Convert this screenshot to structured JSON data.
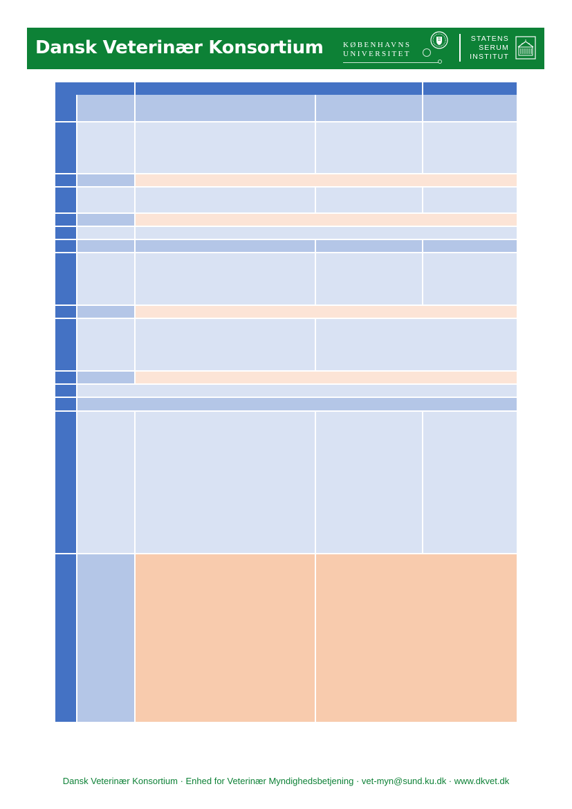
{
  "header": {
    "title": "Dansk Veterinær Konsortium",
    "university_line1": "KØBENHAVNS",
    "university_line2": "UNIVERSITET",
    "institute_line1": "STATENS",
    "institute_line2": "SERUM",
    "institute_line3": "INSTITUT",
    "brand_color": "#0d8136",
    "university_seal_icon": "ku-seal-icon",
    "institute_logo_icon": "ssi-building-icon"
  },
  "table": {
    "header_color": "#4472c4",
    "mid_color": "#b4c6e7",
    "light_color": "#d9e2f3",
    "peach_color": "#fce4d6",
    "orange_color": "#f8cbad"
  },
  "footer": {
    "text": "Dansk Veterinær Konsortium · Enhed for Veterinær Myndighedsbetjening · vet-myn@sund.ku.dk · www.dkvet.dk"
  }
}
